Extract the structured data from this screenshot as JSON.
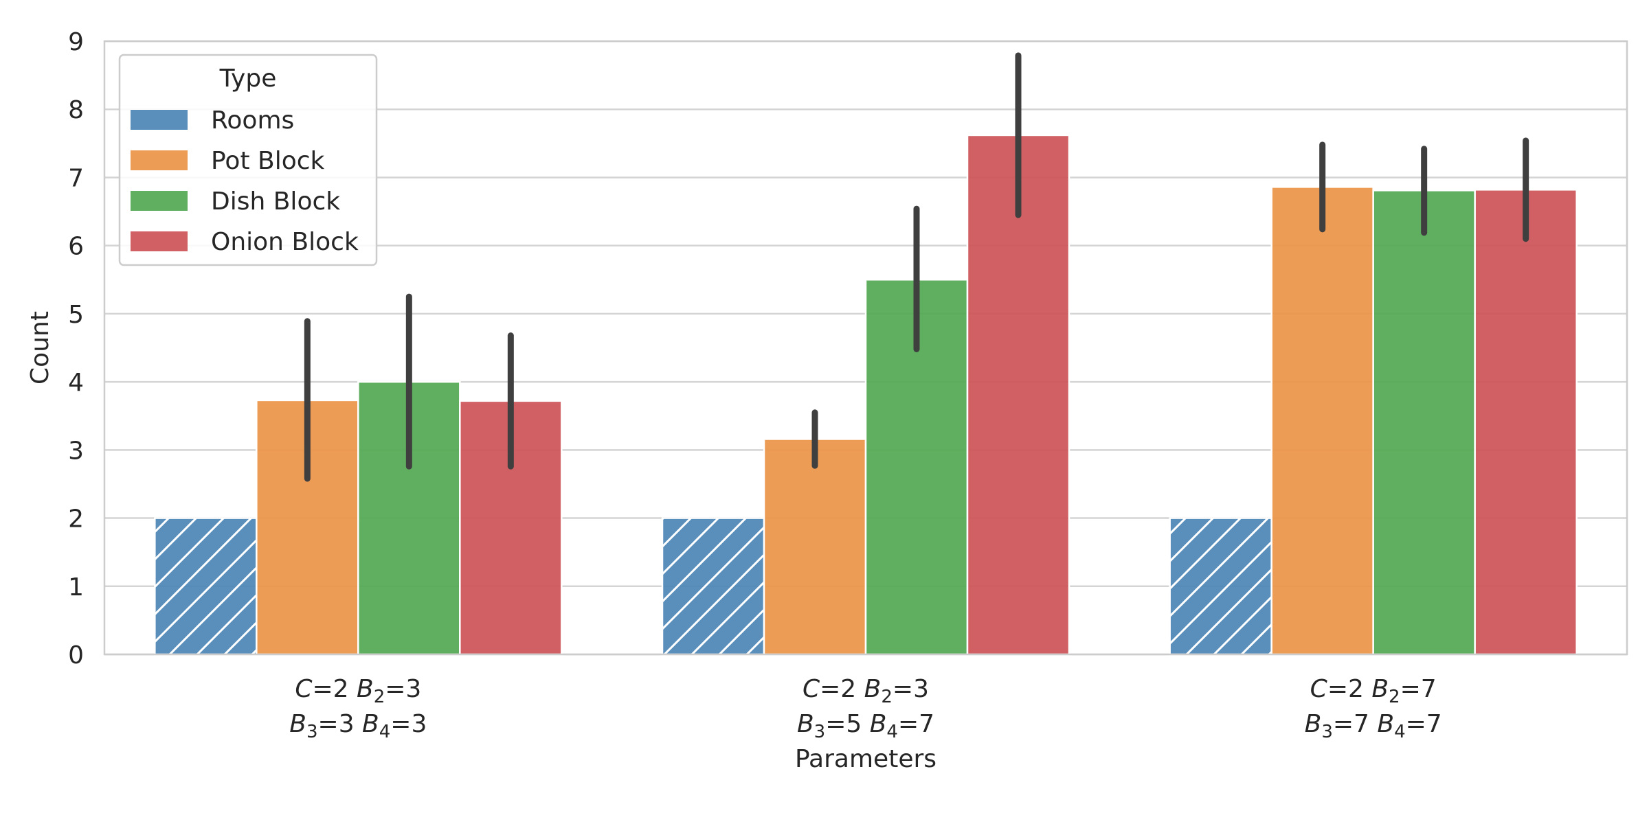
{
  "chart_data": {
    "type": "bar",
    "xlabel": "Parameters",
    "ylabel": "Count",
    "ylim": [
      0,
      9
    ],
    "yticks": [
      0,
      1,
      2,
      3,
      4,
      5,
      6,
      7,
      8,
      9
    ],
    "grid": true,
    "legend": {
      "title": "Type",
      "placement": "top-left"
    },
    "categories": [
      {
        "line1": [
          {
            "t": "C",
            "i": true
          },
          {
            "t": "=2 "
          },
          {
            "t": "B",
            "i": true
          },
          {
            "t": "2",
            "sub": true
          },
          {
            "t": "=3"
          }
        ],
        "line2": [
          {
            "t": "B",
            "i": true
          },
          {
            "t": "3",
            "sub": true
          },
          {
            "t": "=3 "
          },
          {
            "t": "B",
            "i": true
          },
          {
            "t": "4",
            "sub": true
          },
          {
            "t": "=3"
          }
        ]
      },
      {
        "line1": [
          {
            "t": "C",
            "i": true
          },
          {
            "t": "=2 "
          },
          {
            "t": "B",
            "i": true
          },
          {
            "t": "2",
            "sub": true
          },
          {
            "t": "=3"
          }
        ],
        "line2": [
          {
            "t": "B",
            "i": true
          },
          {
            "t": "3",
            "sub": true
          },
          {
            "t": "=5 "
          },
          {
            "t": "B",
            "i": true
          },
          {
            "t": "4",
            "sub": true
          },
          {
            "t": "=7"
          }
        ]
      },
      {
        "line1": [
          {
            "t": "C",
            "i": true
          },
          {
            "t": "=2 "
          },
          {
            "t": "B",
            "i": true
          },
          {
            "t": "2",
            "sub": true
          },
          {
            "t": "=7"
          }
        ],
        "line2": [
          {
            "t": "B",
            "i": true
          },
          {
            "t": "3",
            "sub": true
          },
          {
            "t": "=7 "
          },
          {
            "t": "B",
            "i": true
          },
          {
            "t": "4",
            "sub": true
          },
          {
            "t": "=7"
          }
        ]
      }
    ],
    "series": [
      {
        "name": "Rooms",
        "color": "#4c86b5",
        "hatch": true,
        "values": [
          2,
          2,
          2
        ],
        "err_low": [
          null,
          null,
          null
        ],
        "err_high": [
          null,
          null,
          null
        ]
      },
      {
        "name": "Pot Block",
        "color": "#ec9446",
        "hatch": false,
        "values": [
          3.73,
          3.16,
          6.86
        ],
        "err_low": [
          2.58,
          2.77,
          6.24
        ],
        "err_high": [
          4.89,
          3.55,
          7.48
        ]
      },
      {
        "name": "Dish Block",
        "color": "#52a852",
        "hatch": false,
        "values": [
          4.0,
          5.5,
          6.81
        ],
        "err_low": [
          2.76,
          4.48,
          6.19
        ],
        "err_high": [
          5.25,
          6.54,
          7.42
        ]
      },
      {
        "name": "Onion Block",
        "color": "#cc5357",
        "hatch": false,
        "values": [
          3.72,
          7.62,
          6.82
        ],
        "err_low": [
          2.76,
          6.45,
          6.1
        ],
        "err_high": [
          4.68,
          8.79,
          7.54
        ]
      }
    ]
  }
}
